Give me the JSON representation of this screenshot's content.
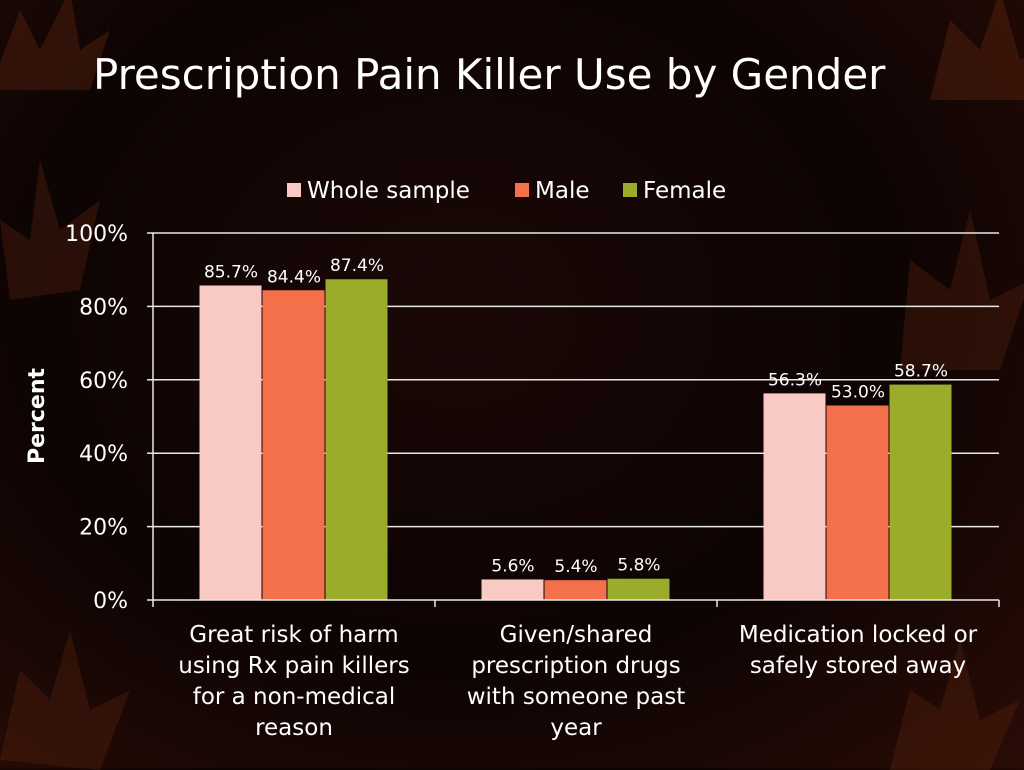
{
  "title": "Prescription Pain Killer Use by Gender",
  "colors": {
    "background": "#0d0403",
    "whole_sample": "#f9c9c4",
    "male": "#f4704a",
    "female": "#9bab2a",
    "grid": "#e8e8e8",
    "text": "#ffffff"
  },
  "chart_data": {
    "type": "bar",
    "title": "Prescription Pain Killer Use by Gender",
    "xlabel": "",
    "ylabel": "Percent",
    "ylim": [
      0,
      100
    ],
    "yticks": [
      "0%",
      "20%",
      "40%",
      "60%",
      "80%",
      "100%"
    ],
    "grid": true,
    "legend_position": "top",
    "categories": [
      [
        "Great risk of harm",
        "using Rx pain killers",
        "for a non-medical",
        "reason"
      ],
      [
        "Given/shared",
        "prescription drugs",
        "with someone past",
        "year"
      ],
      [
        "Medication locked or",
        "safely stored away"
      ]
    ],
    "series": [
      {
        "name": "Whole sample",
        "values": [
          85.7,
          5.6,
          56.3
        ],
        "labels": [
          "85.7%",
          "5.6%",
          "56.3%"
        ]
      },
      {
        "name": "Male",
        "values": [
          84.4,
          5.4,
          53.0
        ],
        "labels": [
          "84.4%",
          "5.4%",
          "53.0%"
        ]
      },
      {
        "name": "Female",
        "values": [
          87.4,
          5.8,
          58.7
        ],
        "labels": [
          "87.4%",
          "5.8%",
          "58.7%"
        ]
      }
    ]
  }
}
